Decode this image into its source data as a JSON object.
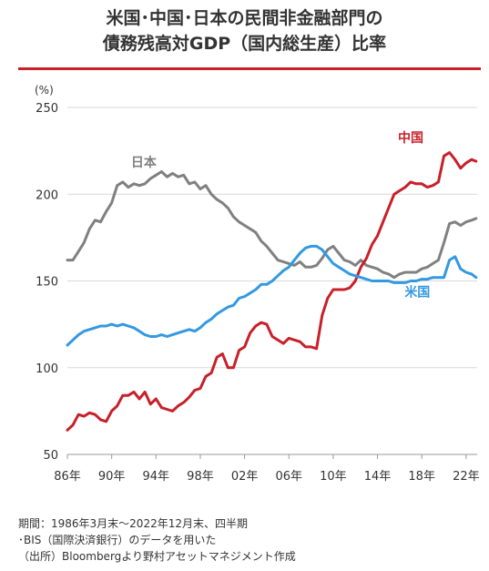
{
  "title_lines": [
    "米国･中国･日本の民間非金融部門の",
    "債務残高対GDP（国内総生産）比率"
  ],
  "notes": [
    "期間：1986年3月末～2022年12月末、四半期",
    "･BIS（国際決済銀行）のデータを用いた",
    "（出所）Bloombergより野村アセットマネジメント作成"
  ],
  "colors": {
    "accent": "#c8202a",
    "japan": "#808080",
    "china": "#c8202a",
    "us": "#3399e0",
    "grid": "#d9d9d9"
  },
  "chart_data": {
    "type": "line",
    "ylabel": "(%)",
    "ylim": [
      50,
      250
    ],
    "yticks": [
      50,
      100,
      150,
      200,
      250
    ],
    "xlim": [
      1986.0,
      2023.0
    ],
    "xticks": [
      {
        "x": 1986,
        "label": "86年"
      },
      {
        "x": 1990,
        "label": "90年"
      },
      {
        "x": 1994,
        "label": "94年"
      },
      {
        "x": 1998,
        "label": "98年"
      },
      {
        "x": 2002,
        "label": "02年"
      },
      {
        "x": 2006,
        "label": "06年"
      },
      {
        "x": 2010,
        "label": "10年"
      },
      {
        "x": 2014,
        "label": "14年"
      },
      {
        "x": 2018,
        "label": "18年"
      },
      {
        "x": 2022,
        "label": "22年"
      }
    ],
    "grid": "horizontal",
    "series": [
      {
        "name": "日本",
        "color": "#808080",
        "x": [
          1986.0,
          1986.5,
          1987.0,
          1987.5,
          1988.0,
          1988.5,
          1989.0,
          1989.5,
          1990.0,
          1990.5,
          1991.0,
          1991.5,
          1992.0,
          1992.5,
          1993.0,
          1993.5,
          1994.0,
          1994.5,
          1995.0,
          1995.5,
          1996.0,
          1996.5,
          1997.0,
          1997.5,
          1998.0,
          1998.5,
          1999.0,
          1999.5,
          2000.0,
          2000.5,
          2001.0,
          2001.5,
          2002.0,
          2002.5,
          2003.0,
          2003.5,
          2004.0,
          2004.5,
          2005.0,
          2005.5,
          2006.0,
          2006.5,
          2007.0,
          2007.5,
          2008.0,
          2008.5,
          2009.0,
          2009.5,
          2010.0,
          2010.5,
          2011.0,
          2011.5,
          2012.0,
          2012.5,
          2013.0,
          2013.5,
          2014.0,
          2014.5,
          2015.0,
          2015.5,
          2016.0,
          2016.5,
          2017.0,
          2017.5,
          2018.0,
          2018.5,
          2019.0,
          2019.5,
          2020.0,
          2020.5,
          2021.0,
          2021.5,
          2022.0,
          2022.5,
          2022.9
        ],
        "values": [
          162,
          162,
          167,
          172,
          180,
          185,
          184,
          190,
          195,
          205,
          207,
          204,
          206,
          205,
          206,
          209,
          211,
          213,
          210,
          212,
          210,
          211,
          206,
          207,
          203,
          205,
          200,
          197,
          195,
          192,
          187,
          184,
          182,
          180,
          178,
          173,
          170,
          166,
          162,
          161,
          160,
          159,
          161,
          158,
          158,
          159,
          163,
          168,
          170,
          166,
          162,
          161,
          159,
          162,
          159,
          158,
          157,
          155,
          154,
          152,
          154,
          155,
          155,
          155,
          157,
          158,
          160,
          162,
          172,
          183,
          184,
          182,
          184,
          185,
          186
        ]
      },
      {
        "name": "中国",
        "color": "#c8202a",
        "x": [
          1986.0,
          1986.5,
          1987.0,
          1987.5,
          1988.0,
          1988.5,
          1989.0,
          1989.5,
          1990.0,
          1990.5,
          1991.0,
          1991.5,
          1992.0,
          1992.5,
          1993.0,
          1993.5,
          1994.0,
          1994.5,
          1995.0,
          1995.5,
          1996.0,
          1996.5,
          1997.0,
          1997.5,
          1998.0,
          1998.5,
          1999.0,
          1999.5,
          2000.0,
          2000.5,
          2001.0,
          2001.5,
          2002.0,
          2002.5,
          2003.0,
          2003.5,
          2004.0,
          2004.5,
          2005.0,
          2005.5,
          2006.0,
          2006.5,
          2007.0,
          2007.5,
          2008.0,
          2008.5,
          2009.0,
          2009.5,
          2010.0,
          2010.5,
          2011.0,
          2011.5,
          2012.0,
          2012.5,
          2013.0,
          2013.5,
          2014.0,
          2014.5,
          2015.0,
          2015.5,
          2016.0,
          2016.5,
          2017.0,
          2017.5,
          2018.0,
          2018.5,
          2019.0,
          2019.5,
          2020.0,
          2020.5,
          2021.0,
          2021.5,
          2022.0,
          2022.5,
          2022.9
        ],
        "values": [
          64,
          67,
          73,
          72,
          74,
          73,
          70,
          69,
          75,
          78,
          84,
          84,
          86,
          82,
          86,
          79,
          82,
          77,
          76,
          75,
          78,
          80,
          83,
          87,
          88,
          95,
          97,
          106,
          108,
          100,
          100,
          110,
          112,
          120,
          124,
          126,
          125,
          118,
          116,
          114,
          117,
          116,
          115,
          112,
          112,
          111,
          130,
          140,
          145,
          145,
          145,
          146,
          150,
          158,
          163,
          171,
          176,
          184,
          192,
          200,
          202,
          204,
          207,
          206,
          206,
          204,
          205,
          207,
          222,
          224,
          220,
          215,
          218,
          220,
          219
        ]
      },
      {
        "name": "米国",
        "color": "#3399e0",
        "x": [
          1986.0,
          1986.5,
          1987.0,
          1987.5,
          1988.0,
          1988.5,
          1989.0,
          1989.5,
          1990.0,
          1990.5,
          1991.0,
          1991.5,
          1992.0,
          1992.5,
          1993.0,
          1993.5,
          1994.0,
          1994.5,
          1995.0,
          1995.5,
          1996.0,
          1996.5,
          1997.0,
          1997.5,
          1998.0,
          1998.5,
          1999.0,
          1999.5,
          2000.0,
          2000.5,
          2001.0,
          2001.5,
          2002.0,
          2002.5,
          2003.0,
          2003.5,
          2004.0,
          2004.5,
          2005.0,
          2005.5,
          2006.0,
          2006.5,
          2007.0,
          2007.5,
          2008.0,
          2008.5,
          2009.0,
          2009.5,
          2010.0,
          2010.5,
          2011.0,
          2011.5,
          2012.0,
          2012.5,
          2013.0,
          2013.5,
          2014.0,
          2014.5,
          2015.0,
          2015.5,
          2016.0,
          2016.5,
          2017.0,
          2017.5,
          2018.0,
          2018.5,
          2019.0,
          2019.5,
          2020.0,
          2020.5,
          2021.0,
          2021.5,
          2022.0,
          2022.5,
          2022.9
        ],
        "values": [
          113,
          116,
          119,
          121,
          122,
          123,
          124,
          124,
          125,
          124,
          125,
          124,
          123,
          121,
          119,
          118,
          118,
          119,
          118,
          119,
          120,
          121,
          122,
          121,
          123,
          126,
          128,
          131,
          133,
          135,
          136,
          140,
          141,
          143,
          145,
          148,
          148,
          150,
          153,
          156,
          158,
          162,
          166,
          169,
          170,
          170,
          168,
          164,
          160,
          158,
          156,
          154,
          153,
          152,
          151,
          150,
          150,
          150,
          150,
          149,
          149,
          149,
          150,
          150,
          151,
          151,
          152,
          152,
          152,
          162,
          164,
          157,
          155,
          154,
          152
        ]
      }
    ],
    "labels": [
      {
        "series": "日本",
        "text": "日本",
        "x": 1992.9,
        "y": 216
      },
      {
        "series": "中国",
        "text": "中国",
        "x": 2017.0,
        "y": 230
      },
      {
        "series": "米国",
        "text": "米国",
        "x": 2017.6,
        "y": 141
      }
    ]
  }
}
